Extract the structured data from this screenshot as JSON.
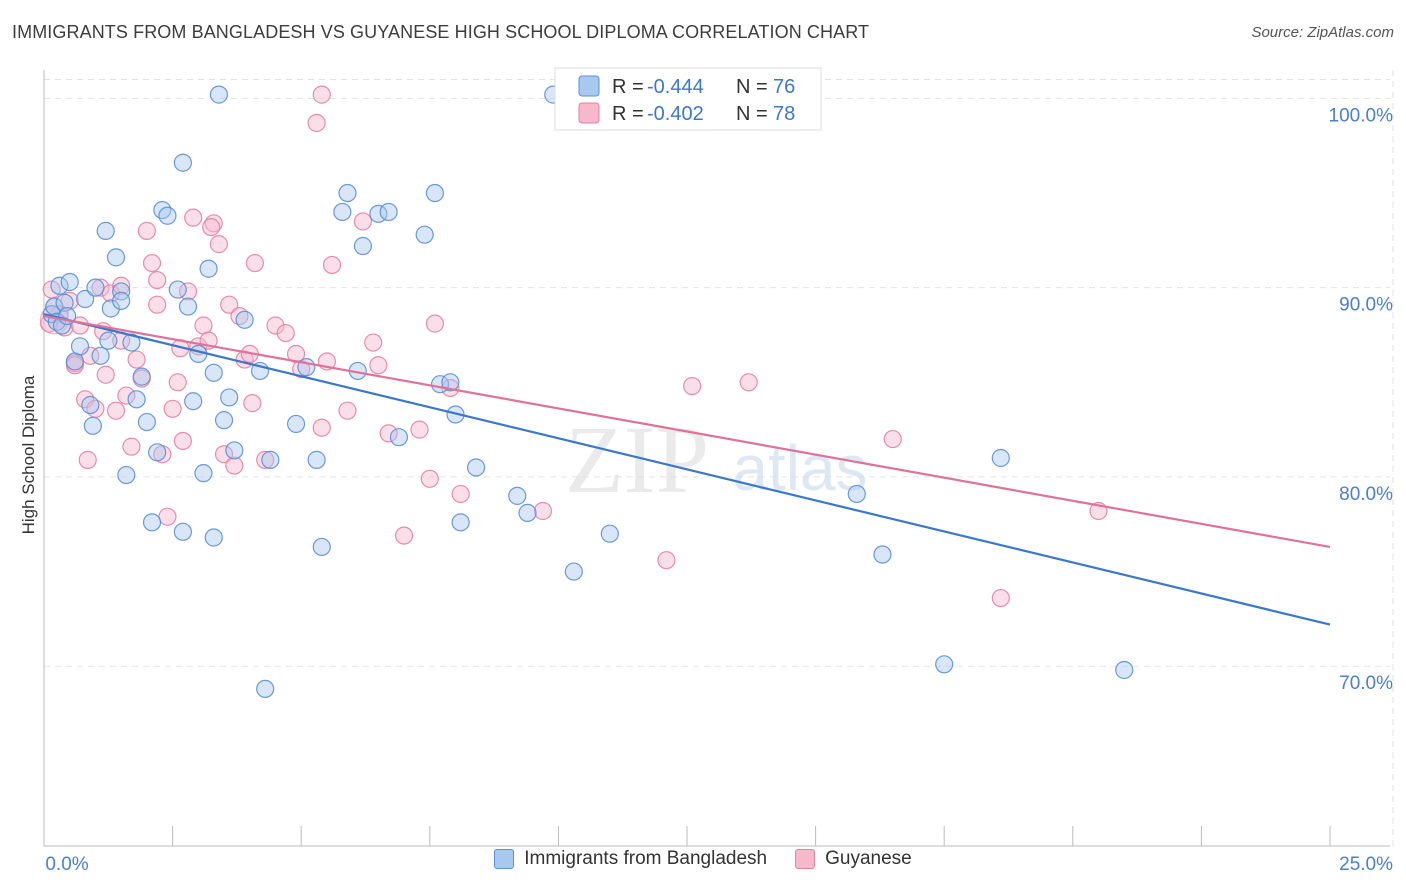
{
  "header": {
    "title": "IMMIGRANTS FROM BANGLADESH VS GUYANESE HIGH SCHOOL DIPLOMA CORRELATION CHART",
    "source": "Source: ZipAtlas.com"
  },
  "watermark": {
    "zip": "ZIP",
    "atlas": "atlas"
  },
  "colors": {
    "series1_fill": "#a8c8f0",
    "series1_stroke": "#5a8fd8",
    "series1_line": "#3a78d0",
    "series2_fill": "#f7b8cc",
    "series2_stroke": "#e87fa2",
    "series2_line": "#e0729a",
    "axis_label": "#4a7fd0",
    "grid": "#e2e2e2"
  },
  "chart_data": {
    "type": "scatter",
    "title": "IMMIGRANTS FROM BANGLADESH VS GUYANESE HIGH SCHOOL DIPLOMA CORRELATION CHART",
    "xlabel": "",
    "ylabel": "High School Diploma",
    "xlim": [
      0,
      25
    ],
    "ylim": [
      60.5,
      101.5
    ],
    "x_tick_labels": [
      "0.0%",
      "25.0%"
    ],
    "y_ticks": [
      70,
      80,
      90,
      100
    ],
    "y_tick_labels": [
      "70.0%",
      "80.0%",
      "90.0%",
      "100.0%"
    ],
    "grid": true,
    "legend_top": [
      {
        "r_label": "R =",
        "r_value": "-0.444",
        "n_label": "N =",
        "n_value": "76"
      },
      {
        "r_label": "R =",
        "r_value": "-0.402",
        "n_label": "N =",
        "n_value": "78"
      }
    ],
    "series": [
      {
        "name": "Immigrants from Bangladesh",
        "trend": {
          "x": [
            0,
            25
          ],
          "y": [
            88.6,
            72.2
          ]
        },
        "points": [
          [
            0.15,
            88.6
          ],
          [
            0.2,
            89.0
          ],
          [
            0.25,
            88.2
          ],
          [
            0.3,
            90.1
          ],
          [
            0.35,
            88.0
          ],
          [
            0.4,
            89.2
          ],
          [
            0.45,
            88.5
          ],
          [
            0.5,
            90.3
          ],
          [
            0.6,
            86.1
          ],
          [
            0.7,
            86.9
          ],
          [
            0.8,
            89.4
          ],
          [
            0.9,
            83.8
          ],
          [
            1.0,
            90.0
          ],
          [
            1.1,
            86.4
          ],
          [
            1.2,
            93.0
          ],
          [
            1.3,
            88.9
          ],
          [
            1.4,
            91.6
          ],
          [
            1.5,
            89.8
          ],
          [
            1.6,
            80.1
          ],
          [
            1.7,
            87.1
          ],
          [
            1.8,
            84.1
          ],
          [
            1.9,
            85.3
          ],
          [
            2.0,
            82.9
          ],
          [
            2.1,
            77.6
          ],
          [
            2.2,
            81.3
          ],
          [
            2.3,
            94.1
          ],
          [
            2.4,
            93.8
          ],
          [
            2.6,
            89.9
          ],
          [
            2.7,
            96.6
          ],
          [
            2.8,
            89.0
          ],
          [
            2.9,
            84.0
          ],
          [
            3.0,
            86.5
          ],
          [
            3.1,
            80.2
          ],
          [
            3.2,
            91.0
          ],
          [
            3.3,
            85.5
          ],
          [
            3.4,
            100.2
          ],
          [
            3.5,
            83.0
          ],
          [
            3.6,
            84.2
          ],
          [
            3.7,
            81.4
          ],
          [
            3.9,
            88.3
          ],
          [
            4.2,
            85.6
          ],
          [
            4.4,
            80.9
          ],
          [
            4.9,
            82.8
          ],
          [
            5.1,
            85.8
          ],
          [
            5.3,
            80.9
          ],
          [
            5.4,
            76.3
          ],
          [
            5.8,
            94.0
          ],
          [
            5.9,
            95.0
          ],
          [
            6.1,
            85.6
          ],
          [
            6.2,
            92.2
          ],
          [
            6.5,
            93.9
          ],
          [
            6.7,
            94.0
          ],
          [
            6.9,
            82.1
          ],
          [
            7.4,
            92.8
          ],
          [
            7.6,
            95.0
          ],
          [
            7.7,
            84.9
          ],
          [
            7.9,
            85.0
          ],
          [
            8.0,
            83.3
          ],
          [
            8.1,
            77.6
          ],
          [
            8.4,
            80.5
          ],
          [
            9.2,
            79.0
          ],
          [
            9.4,
            78.1
          ],
          [
            9.9,
            100.2
          ],
          [
            10.3,
            75.0
          ],
          [
            11.0,
            77.0
          ],
          [
            15.8,
            79.1
          ],
          [
            16.3,
            75.9
          ],
          [
            17.5,
            70.1
          ],
          [
            18.6,
            81.0
          ],
          [
            21.0,
            69.8
          ],
          [
            2.7,
            77.1
          ],
          [
            4.3,
            68.8
          ],
          [
            1.5,
            89.3
          ],
          [
            0.95,
            82.7
          ],
          [
            1.25,
            87.2
          ],
          [
            3.3,
            76.8
          ]
        ]
      },
      {
        "name": "Guyanese",
        "trend": {
          "x": [
            0,
            25
          ],
          "y": [
            88.5,
            76.3
          ]
        },
        "points": [
          [
            0.1,
            88.1
          ],
          [
            0.15,
            89.9
          ],
          [
            0.2,
            89.0
          ],
          [
            0.3,
            88.6
          ],
          [
            0.4,
            87.9
          ],
          [
            0.5,
            89.3
          ],
          [
            0.6,
            86.0
          ],
          [
            0.7,
            88.0
          ],
          [
            0.8,
            84.1
          ],
          [
            0.9,
            86.4
          ],
          [
            1.0,
            83.6
          ],
          [
            1.1,
            90.0
          ],
          [
            1.2,
            85.4
          ],
          [
            1.3,
            89.7
          ],
          [
            1.4,
            83.5
          ],
          [
            1.5,
            90.1
          ],
          [
            1.6,
            84.3
          ],
          [
            1.7,
            81.6
          ],
          [
            1.8,
            86.2
          ],
          [
            1.9,
            85.2
          ],
          [
            2.0,
            93.0
          ],
          [
            2.1,
            91.3
          ],
          [
            2.2,
            90.4
          ],
          [
            2.3,
            81.2
          ],
          [
            2.4,
            77.9
          ],
          [
            2.5,
            83.6
          ],
          [
            2.6,
            85.0
          ],
          [
            2.7,
            81.9
          ],
          [
            2.8,
            89.8
          ],
          [
            2.9,
            93.7
          ],
          [
            3.0,
            86.9
          ],
          [
            3.1,
            88.0
          ],
          [
            3.2,
            87.2
          ],
          [
            3.3,
            93.4
          ],
          [
            3.4,
            92.3
          ],
          [
            3.5,
            81.2
          ],
          [
            3.6,
            89.1
          ],
          [
            3.7,
            80.6
          ],
          [
            3.8,
            88.5
          ],
          [
            3.9,
            86.2
          ],
          [
            4.0,
            86.5
          ],
          [
            4.1,
            91.3
          ],
          [
            4.3,
            80.9
          ],
          [
            4.5,
            88.0
          ],
          [
            4.7,
            87.6
          ],
          [
            4.9,
            86.5
          ],
          [
            5.0,
            85.7
          ],
          [
            5.4,
            82.6
          ],
          [
            5.5,
            86.1
          ],
          [
            5.6,
            91.2
          ],
          [
            5.9,
            83.5
          ],
          [
            6.2,
            93.5
          ],
          [
            6.4,
            87.1
          ],
          [
            6.5,
            85.9
          ],
          [
            6.7,
            82.3
          ],
          [
            7.0,
            76.9
          ],
          [
            7.3,
            82.5
          ],
          [
            7.5,
            79.9
          ],
          [
            7.6,
            88.1
          ],
          [
            7.9,
            84.7
          ],
          [
            8.1,
            79.1
          ],
          [
            9.7,
            78.2
          ],
          [
            12.1,
            75.6
          ],
          [
            12.6,
            84.8
          ],
          [
            13.7,
            85.0
          ],
          [
            16.5,
            82.0
          ],
          [
            18.6,
            73.6
          ],
          [
            20.5,
            78.2
          ],
          [
            5.4,
            100.2
          ],
          [
            5.3,
            98.7
          ],
          [
            1.5,
            87.2
          ],
          [
            2.2,
            89.1
          ],
          [
            0.85,
            80.9
          ],
          [
            0.6,
            85.9
          ],
          [
            1.15,
            87.7
          ],
          [
            2.65,
            86.8
          ],
          [
            4.05,
            83.9
          ],
          [
            3.25,
            93.2
          ]
        ]
      }
    ]
  },
  "legend_bottom": [
    {
      "label": "Immigrants from Bangladesh"
    },
    {
      "label": "Guyanese"
    }
  ]
}
